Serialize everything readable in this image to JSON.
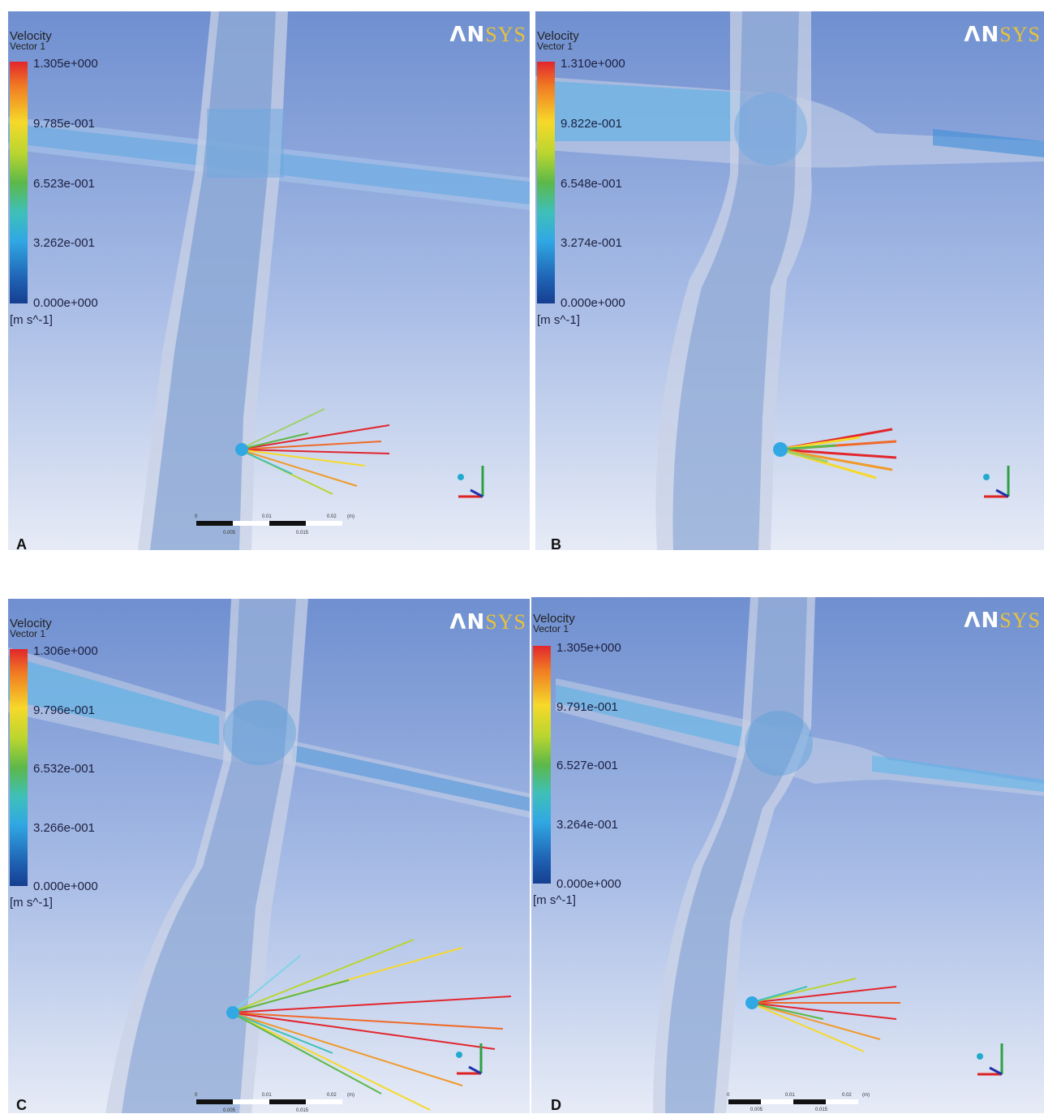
{
  "brand": {
    "part1": "ΛN",
    "part2": "SYS"
  },
  "panels": [
    {
      "label": "A",
      "legend_title": "Velocity",
      "legend_subtitle": "Vector 1",
      "ticks": [
        "1.305e+000",
        "9.785e-001",
        "6.523e-001",
        "3.262e-001",
        "0.000e+000"
      ],
      "unit": "[m s^-1]"
    },
    {
      "label": "B",
      "legend_title": "Velocity",
      "legend_subtitle": "Vector 1",
      "ticks": [
        "1.310e+000",
        "9.822e-001",
        "6.548e-001",
        "3.274e-001",
        "0.000e+000"
      ],
      "unit": "[m s^-1]"
    },
    {
      "label": "C",
      "legend_title": "Velocity",
      "legend_subtitle": "Vector 1",
      "ticks": [
        "1.306e+000",
        "9.796e-001",
        "6.532e-001",
        "3.266e-001",
        "0.000e+000"
      ],
      "unit": "[m s^-1]"
    },
    {
      "label": "D",
      "legend_title": "Velocity",
      "legend_subtitle": "Vector 1",
      "ticks": [
        "1.305e+000",
        "9.791e-001",
        "6.527e-001",
        "3.264e-001",
        "0.000e+000"
      ],
      "unit": "[m s^-1]"
    }
  ],
  "scale_bar": {
    "top_labels": [
      "0",
      "0.01",
      "0.02",
      "(m)"
    ],
    "bottom_labels": [
      "0.005",
      "0.015"
    ]
  },
  "colors": {
    "background_top": "#6f8fd0",
    "background_bottom": "#e8ecf6",
    "vessel": "#c8d0e4",
    "flow_low": "#1f62b3",
    "flow_high": "#e2262d"
  }
}
